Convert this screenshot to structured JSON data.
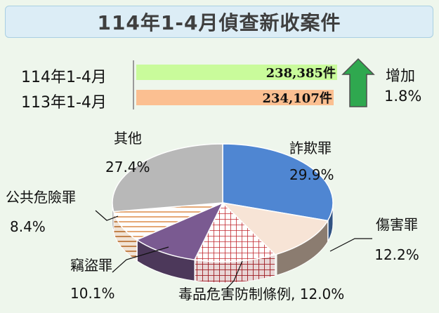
{
  "header": {
    "title": "114年1-4月偵查新收案件"
  },
  "comparison": {
    "rows": [
      {
        "label": "114年1-4月",
        "value": 238385,
        "value_text": "238,385件",
        "color": "#c9fb9b"
      },
      {
        "label": "113年1-4月",
        "value": 234107,
        "value_text": "234,107件",
        "color": "#fbbf91"
      }
    ],
    "change_label": "增加",
    "change_value": "1.8%",
    "change_direction": "up",
    "arrow_color": "#2fa84f"
  },
  "chart_data": {
    "type": "pie",
    "title": "114年1-4月偵查新收案件",
    "slices": [
      {
        "name": "詐欺罪",
        "percent": 29.9,
        "label": "詐欺罪",
        "value_label": "29.9%",
        "color": "#4f86d2",
        "pattern": "solid"
      },
      {
        "name": "傷害罪",
        "percent": 12.2,
        "label": "傷害罪",
        "value_label": "12.2%",
        "color": "#f7e4d6",
        "pattern": "solid"
      },
      {
        "name": "毒品危害防制條例",
        "percent": 12.0,
        "label": "毒品危害防制條例, 12.0%",
        "value_label": "",
        "color": "#c1272d",
        "pattern": "grid"
      },
      {
        "name": "竊盜罪",
        "percent": 10.1,
        "label": "竊盜罪",
        "value_label": "10.1%",
        "color": "#7a5a91",
        "pattern": "solid"
      },
      {
        "name": "公共危險罪",
        "percent": 8.4,
        "label": "公共危險罪",
        "value_label": "8.4%",
        "color": "#d77a2c",
        "pattern": "hlines"
      },
      {
        "name": "其他",
        "percent": 27.4,
        "label": "其他",
        "value_label": "27.4%",
        "color": "#b8b8b8",
        "pattern": "solid"
      }
    ]
  }
}
